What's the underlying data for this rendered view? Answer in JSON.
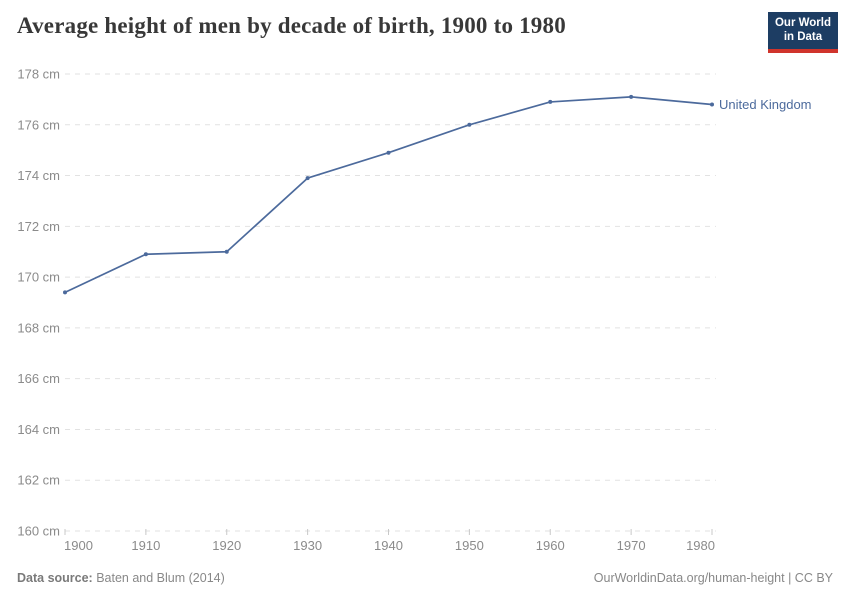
{
  "header": {
    "title": "Average height of men by decade of birth, 1900 to 1980",
    "logo": {
      "line1": "Our World",
      "line2": "in Data"
    }
  },
  "chart_data": {
    "type": "line",
    "title": "Average height of men by decade of birth, 1900 to 1980",
    "x": [
      1900,
      1910,
      1920,
      1930,
      1940,
      1950,
      1960,
      1970,
      1980
    ],
    "series": [
      {
        "name": "United Kingdom",
        "values": [
          169.4,
          170.9,
          171.0,
          173.9,
          174.9,
          176.0,
          176.9,
          177.1,
          176.8
        ],
        "color": "#4C6A9C"
      }
    ],
    "xlabel": "",
    "ylabel": "",
    "ylim": [
      160,
      178
    ],
    "ytick_step": 2,
    "ytick_suffix": " cm",
    "grid": "horizontal-dashed",
    "legend_position": "line-end-label"
  },
  "footer": {
    "source_label": "Data source:",
    "source_value": "Baten and Blum (2014)",
    "attribution": "OurWorldinData.org/human-height | CC BY"
  },
  "colors": {
    "line": "#4C6A9C",
    "grid": "#e2e2e2",
    "tick_text": "#8b8b8b",
    "title_text": "#383838",
    "logo_bg": "#1d3d63",
    "logo_accent": "#d0342c",
    "footer_text": "#888888"
  }
}
